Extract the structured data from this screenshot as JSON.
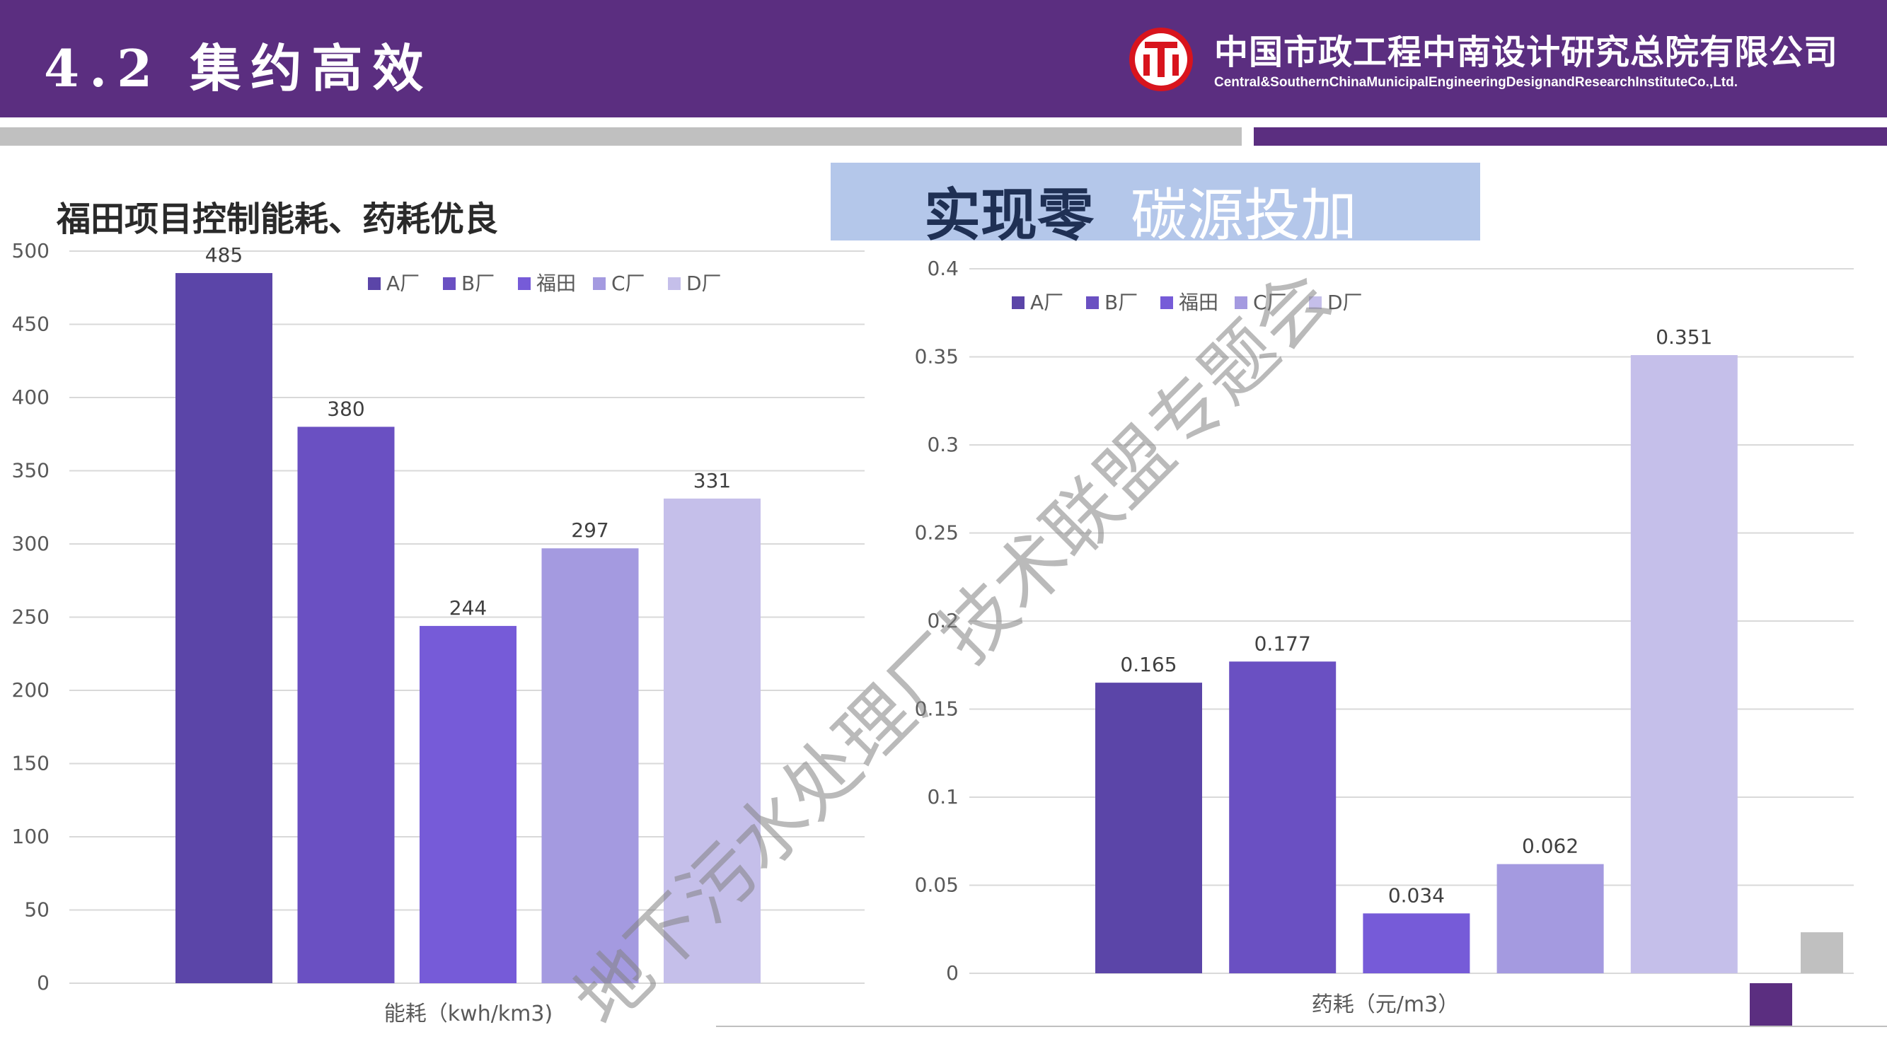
{
  "header": {
    "title": "4.2 集约高效",
    "company_cn": "中国市政工程中南设计研究总院有限公司",
    "company_en": "Central&SouthernChinaMunicipalEngineeringDesignandResearchInstituteCo.,Ltd.",
    "background": "#5b2e80"
  },
  "left_heading": "福田项目控制能耗、药耗优良",
  "callout": {
    "bold": "实现零",
    "light": "碳源投加",
    "background": "#b4c7ea"
  },
  "watermark": "地下污水处理厂技术联盟专题会",
  "chart_data": [
    {
      "type": "bar",
      "title": "",
      "categories": [
        "能耗（kwh/km3)"
      ],
      "xlabel": "能耗（kwh/km3)",
      "ylabel": "",
      "ylim": [
        0,
        500
      ],
      "yticks": [
        0,
        50,
        100,
        150,
        200,
        250,
        300,
        350,
        400,
        450,
        500
      ],
      "grid": true,
      "legend_position": "top",
      "series": [
        {
          "name": "A厂",
          "values": [
            485
          ],
          "color": "#5b45a8"
        },
        {
          "name": "B厂",
          "values": [
            380
          ],
          "color": "#6a50c2"
        },
        {
          "name": "福田",
          "values": [
            244
          ],
          "color": "#765bd8"
        },
        {
          "name": "C厂",
          "values": [
            297
          ],
          "color": "#a49ae0"
        },
        {
          "name": "D厂",
          "values": [
            331
          ],
          "color": "#c5bfea"
        }
      ],
      "data_labels": [
        "485",
        "380",
        "244",
        "297",
        "331"
      ]
    },
    {
      "type": "bar",
      "title": "",
      "categories": [
        "药耗（元/m3）"
      ],
      "xlabel": "药耗（元/m3）",
      "ylabel": "",
      "ylim": [
        0,
        0.4
      ],
      "yticks": [
        0,
        0.05,
        0.1,
        0.15,
        0.2,
        0.25,
        0.3,
        0.35,
        0.4
      ],
      "grid": true,
      "legend_position": "top-left",
      "series": [
        {
          "name": "A厂",
          "values": [
            0.165
          ],
          "color": "#5b45a8"
        },
        {
          "name": "B厂",
          "values": [
            0.177
          ],
          "color": "#6a50c2"
        },
        {
          "name": "福田",
          "values": [
            0.034
          ],
          "color": "#765bd8"
        },
        {
          "name": "C厂",
          "values": [
            0.062
          ],
          "color": "#a49ae0"
        },
        {
          "name": "D厂",
          "values": [
            0.351
          ],
          "color": "#c5bfea"
        }
      ],
      "data_labels": [
        "0.165",
        "0.177",
        "0.034",
        "0.062",
        "0.351"
      ]
    }
  ]
}
